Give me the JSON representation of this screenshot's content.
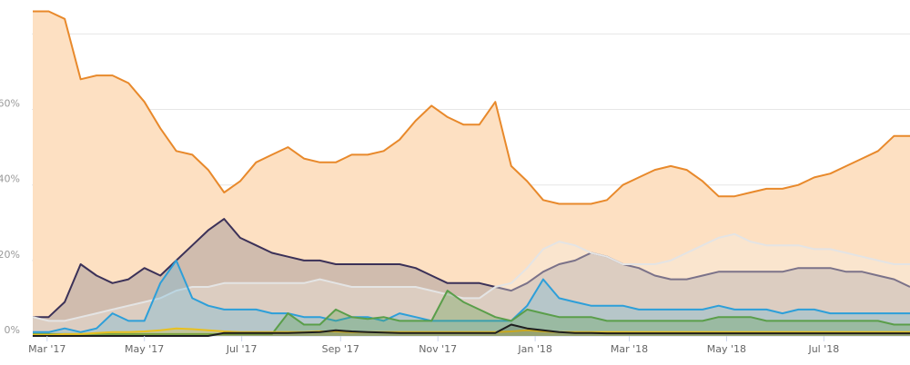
{
  "chart_data": {
    "type": "area",
    "title": "",
    "xlabel": "",
    "ylabel": "",
    "ylim": [
      0,
      89
    ],
    "xlim": [
      "2017-02-20",
      "2018-08-24"
    ],
    "grid": true,
    "legend": "none",
    "y_ticks": [
      {
        "value": 0,
        "label": "0%"
      },
      {
        "value": 20,
        "label": "20%"
      },
      {
        "value": 40,
        "label": "40%"
      },
      {
        "value": 60,
        "label": "60%"
      },
      {
        "value": 80,
        "label": ""
      }
    ],
    "x_ticks": [
      {
        "date": "2017-03-01",
        "label": "Mar '17"
      },
      {
        "date": "2017-05-01",
        "label": "May '17"
      },
      {
        "date": "2017-07-01",
        "label": "Jul '17"
      },
      {
        "date": "2017-09-01",
        "label": "Sep '17"
      },
      {
        "date": "2017-11-01",
        "label": "Nov '17"
      },
      {
        "date": "2018-01-01",
        "label": "Jan '18"
      },
      {
        "date": "2018-03-01",
        "label": "Mar '18"
      },
      {
        "date": "2018-05-01",
        "label": "May '18"
      },
      {
        "date": "2018-07-01",
        "label": "Jul '18"
      }
    ],
    "x": [
      "2017-02-20",
      "2017-03-02",
      "2017-03-12",
      "2017-03-22",
      "2017-04-01",
      "2017-04-11",
      "2017-04-21",
      "2017-05-01",
      "2017-05-11",
      "2017-05-21",
      "2017-05-31",
      "2017-06-10",
      "2017-06-20",
      "2017-06-30",
      "2017-07-10",
      "2017-07-20",
      "2017-07-30",
      "2017-08-09",
      "2017-08-19",
      "2017-08-29",
      "2017-09-08",
      "2017-09-18",
      "2017-09-28",
      "2017-10-08",
      "2017-10-18",
      "2017-10-28",
      "2017-11-07",
      "2017-11-17",
      "2017-11-27",
      "2017-12-07",
      "2017-12-17",
      "2017-12-27",
      "2018-01-06",
      "2018-01-16",
      "2018-01-26",
      "2018-02-05",
      "2018-02-15",
      "2018-02-25",
      "2018-03-07",
      "2018-03-17",
      "2018-03-27",
      "2018-04-06",
      "2018-04-16",
      "2018-04-26",
      "2018-05-06",
      "2018-05-16",
      "2018-05-26",
      "2018-06-05",
      "2018-06-15",
      "2018-06-25",
      "2018-07-05",
      "2018-07-15",
      "2018-07-25",
      "2018-08-04",
      "2018-08-14",
      "2018-08-24"
    ],
    "series": [
      {
        "color": "#e8892b",
        "fill": "#fde0c2",
        "fill_opacity": 1,
        "values": [
          86,
          86,
          84,
          68,
          69,
          69,
          67,
          62,
          55,
          49,
          48,
          44,
          38,
          41,
          46,
          48,
          50,
          47,
          46,
          46,
          48,
          48,
          49,
          52,
          57,
          61,
          58,
          56,
          56,
          62,
          45,
          41,
          36,
          35,
          35,
          35,
          36,
          40,
          42,
          44,
          45,
          44,
          41,
          37,
          37,
          38,
          39,
          39,
          40,
          42,
          43,
          45,
          47,
          49,
          53,
          53
        ]
      },
      {
        "color": "#3b3158",
        "fill": "#6b6a80",
        "fill_opacity": 0.3,
        "values": [
          5,
          5,
          9,
          19,
          16,
          14,
          15,
          18,
          16,
          20,
          24,
          28,
          31,
          26,
          24,
          22,
          21,
          20,
          20,
          19,
          19,
          19,
          19,
          19,
          18,
          16,
          14,
          14,
          14,
          13,
          12,
          14,
          17,
          19,
          20,
          22,
          21,
          19,
          18,
          16,
          15,
          15,
          16,
          17,
          17,
          17,
          17,
          17,
          18,
          18,
          18,
          17,
          17,
          16,
          15,
          13
        ]
      },
      {
        "color": "#e4e4e4",
        "fill": "#f4eee6",
        "fill_opacity": 0.35,
        "values": [
          5,
          4,
          4,
          5,
          6,
          7,
          8,
          9,
          10,
          12,
          13,
          13,
          14,
          14,
          14,
          14,
          14,
          14,
          15,
          14,
          13,
          13,
          13,
          13,
          13,
          12,
          11,
          10,
          10,
          13,
          14,
          18,
          23,
          25,
          24,
          22,
          21,
          19,
          19,
          19,
          20,
          22,
          24,
          26,
          27,
          25,
          24,
          24,
          24,
          23,
          23,
          22,
          21,
          20,
          19,
          19
        ]
      },
      {
        "color": "#2d9fd9",
        "fill": "#5fb6de",
        "fill_opacity": 0.3,
        "values": [
          1,
          1,
          2,
          1,
          2,
          6,
          4,
          4,
          14,
          20,
          10,
          8,
          7,
          7,
          7,
          6,
          6,
          5,
          5,
          4,
          5,
          5,
          4,
          6,
          5,
          4,
          4,
          4,
          4,
          4,
          4,
          8,
          15,
          10,
          9,
          8,
          8,
          8,
          7,
          7,
          7,
          7,
          7,
          8,
          7,
          7,
          7,
          6,
          7,
          7,
          6,
          6,
          6,
          6,
          6,
          6
        ]
      },
      {
        "color": "#5a9e4a",
        "fill": "#5a9e4a",
        "fill_opacity": 0.3,
        "values": [
          0.5,
          0.5,
          0.5,
          0.5,
          0.5,
          0.5,
          0.5,
          0.5,
          0.5,
          0.5,
          0.5,
          0.5,
          0.5,
          0.5,
          0.5,
          0.5,
          6,
          3,
          3,
          7,
          5,
          4.5,
          5,
          4,
          4,
          4,
          12,
          9,
          7,
          5,
          4,
          7,
          6,
          5,
          5,
          5,
          4,
          4,
          4,
          4,
          4,
          4,
          4,
          5,
          5,
          5,
          4,
          4,
          4,
          4,
          4,
          4,
          4,
          4,
          3,
          3
        ]
      },
      {
        "color": "#e8c020",
        "fill": "#e8c020",
        "fill_opacity": 0.25,
        "values": [
          0.3,
          0.3,
          0.5,
          0.5,
          0.8,
          1,
          1,
          1.2,
          1.5,
          2,
          1.8,
          1.5,
          1.2,
          1,
          1,
          1,
          1,
          1,
          1.2,
          1.2,
          1,
          1,
          1,
          1,
          1,
          1,
          1,
          1,
          1,
          1,
          1.2,
          1.5,
          1.2,
          1,
          1,
          1,
          1,
          1,
          1,
          1,
          1,
          1,
          1,
          1,
          1,
          1,
          1,
          1,
          1,
          1,
          1,
          1,
          1,
          1,
          1,
          1
        ]
      },
      {
        "color": "#1e1e1e",
        "fill": "#1e1e1e",
        "fill_opacity": 0.15,
        "values": [
          0,
          0,
          0,
          0,
          0,
          0,
          0,
          0,
          0,
          0,
          0,
          0,
          0.8,
          0.8,
          0.8,
          0.8,
          0.8,
          0.9,
          1,
          1.5,
          1.2,
          1,
          0.9,
          0.8,
          0.8,
          0.8,
          0.8,
          0.8,
          0.8,
          0.8,
          3,
          2,
          1.5,
          1,
          0.8,
          0.8,
          0.7,
          0.7,
          0.7,
          0.7,
          0.7,
          0.7,
          0.7,
          0.7,
          0.7,
          0.7,
          0.7,
          0.7,
          0.7,
          0.7,
          0.7,
          0.7,
          0.7,
          0.7,
          0.7,
          0.7
        ]
      }
    ]
  }
}
